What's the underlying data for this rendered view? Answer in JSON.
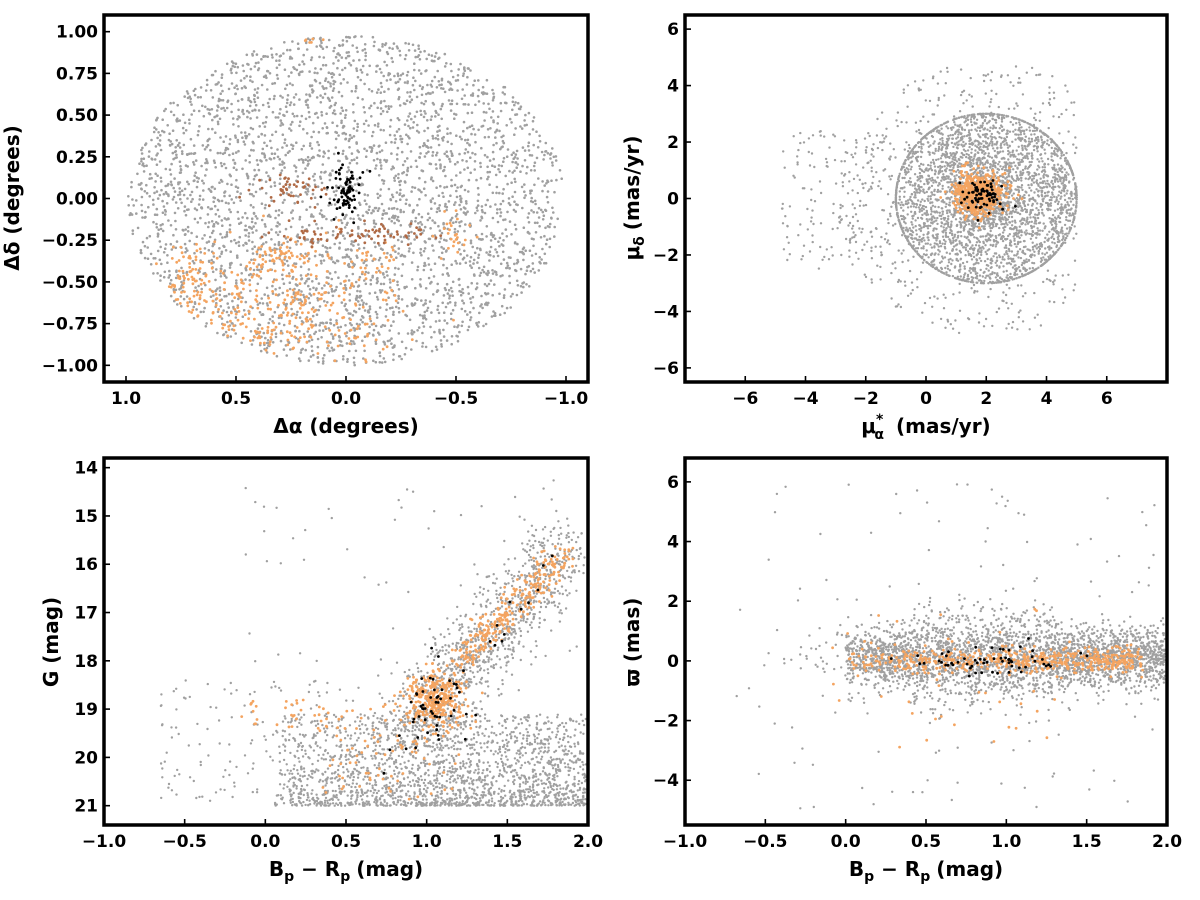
{
  "colors": {
    "field": "#a0a0a0",
    "members": "#f4a460",
    "core": "#000000"
  },
  "chart_data": [
    {
      "id": "sky",
      "type": "scatter",
      "xlabel_main": "Δα",
      "xlabel_unit": "(degrees)",
      "ylabel_main": "Δδ",
      "ylabel_unit": "(degrees)",
      "xlim": [
        1.1,
        -1.1
      ],
      "ylim": [
        -1.1,
        1.1
      ],
      "xticks": [
        1.0,
        0.5,
        0.0,
        -0.5,
        -1.0
      ],
      "xtick_labels": [
        "1.0",
        "0.5",
        "0.0",
        "−0.5",
        "−1.0"
      ],
      "yticks": [
        1.0,
        0.75,
        0.5,
        0.25,
        0.0,
        -0.25,
        -0.5,
        -0.75,
        -1.0
      ],
      "ytick_labels": [
        "1.00",
        "0.75",
        "0.50",
        "0.25",
        "0.00",
        "−0.25",
        "−0.50",
        "−0.75",
        "−1.00"
      ],
      "series": [
        {
          "role": "field",
          "distribution": "uniform disk",
          "center": [
            0.0,
            -0.01
          ],
          "radius": 0.99,
          "n_points": 3300
        },
        {
          "role": "members",
          "description": "southern overdensity and filaments",
          "clumps": [
            {
              "center": [
                0.35,
                -0.68
              ],
              "spread": [
                0.28,
                0.2
              ],
              "n": 380
            },
            {
              "center": [
                0.7,
                -0.48
              ],
              "spread": [
                0.08,
                0.12
              ],
              "n": 70
            },
            {
              "center": [
                0.3,
                -0.35
              ],
              "spread": [
                0.08,
                0.05
              ],
              "n": 55
            },
            {
              "center": [
                -0.1,
                -0.38
              ],
              "spread": [
                0.07,
                0.06
              ],
              "n": 30
            },
            {
              "center": [
                -0.48,
                -0.2
              ],
              "spread": [
                0.05,
                0.08
              ],
              "n": 25
            },
            {
              "center": [
                0.15,
                0.96
              ],
              "spread": [
                0.03,
                0.02
              ],
              "n": 12
            }
          ]
        },
        {
          "role": "members-dark",
          "description": "brown filaments near centre",
          "clumps": [
            {
              "center": [
                0.25,
                0.05
              ],
              "spread": [
                0.09,
                0.05
              ],
              "n": 45
            },
            {
              "center": [
                0.1,
                -0.22
              ],
              "spread": [
                0.12,
                0.03
              ],
              "n": 40
            },
            {
              "center": [
                -0.22,
                -0.2
              ],
              "spread": [
                0.1,
                0.03
              ],
              "n": 35
            }
          ]
        },
        {
          "role": "core",
          "description": "central cluster",
          "clumps": [
            {
              "center": [
                0.0,
                0.02
              ],
              "spread": [
                0.05,
                0.09
              ],
              "n": 75
            }
          ]
        }
      ]
    },
    {
      "id": "proper-motion",
      "type": "scatter",
      "xlabel_main": "μ",
      "xlabel_sub": "α",
      "xlabel_sup": "*",
      "xlabel_unit": "(mas/yr)",
      "ylabel_main": "μ",
      "ylabel_sub": "δ",
      "ylabel_unit": "(mas/yr)",
      "xlim": [
        -8.0,
        8.0
      ],
      "ylim": [
        -6.5,
        6.5
      ],
      "xticks": [
        -6,
        -4,
        -2,
        0,
        2,
        4,
        6
      ],
      "xtick_labels": [
        "−6",
        "−4",
        "−2",
        "0",
        "2",
        "4",
        "6"
      ],
      "yticks": [
        6,
        4,
        2,
        0,
        -2,
        -4,
        -6
      ],
      "ytick_labels": [
        "6",
        "4",
        "2",
        "0",
        "−2",
        "−4",
        "−6"
      ],
      "series": [
        {
          "role": "field",
          "distribution": "disk",
          "center": [
            2.0,
            0.0
          ],
          "radius": 3.0,
          "n_points": 3200
        },
        {
          "role": "field-tail",
          "x_range": [
            -4.8,
            -1.0
          ],
          "y_range": [
            -2.5,
            2.5
          ],
          "n_points": 160
        },
        {
          "role": "members",
          "center": [
            1.75,
            0.2
          ],
          "spread": [
            0.38,
            0.38
          ],
          "n_points": 600
        },
        {
          "role": "core",
          "center": [
            1.9,
            0.15
          ],
          "spread": [
            0.35,
            0.3
          ],
          "n_points": 70
        }
      ]
    },
    {
      "id": "cmd",
      "type": "scatter",
      "xlabel_main": "B",
      "xlabel_sub": "p",
      "xlabel_mid": " − R",
      "xlabel_sub2": "p",
      "xlabel_unit": "(mag)",
      "ylabel_main": "G",
      "ylabel_unit": "(mag)",
      "xlim": [
        -1.0,
        2.0
      ],
      "ylim": [
        21.4,
        13.8
      ],
      "xticks": [
        -1.0,
        -0.5,
        0.0,
        0.5,
        1.0,
        1.5,
        2.0
      ],
      "xtick_labels": [
        "−1.0",
        "−0.5",
        "0.0",
        "0.5",
        "1.0",
        "1.5",
        "2.0"
      ],
      "yticks": [
        21,
        20,
        19,
        18,
        17,
        16,
        15,
        14
      ],
      "ytick_labels": [
        "21",
        "20",
        "19",
        "18",
        "17",
        "16",
        "15",
        "14"
      ],
      "series": [
        {
          "role": "field",
          "description": "faint band G 19–21 plus sequence",
          "n_points": 3000
        },
        {
          "role": "members",
          "description": "red clump near (1.05, 18.8) and giant branch to (1.85, 15.8)",
          "n_points": 650
        },
        {
          "role": "core",
          "n_points": 65
        }
      ]
    },
    {
      "id": "parallax",
      "type": "scatter",
      "xlabel_main": "B",
      "xlabel_sub": "p",
      "xlabel_mid": " − R",
      "xlabel_sub2": "p",
      "xlabel_unit": "(mag)",
      "ylabel_main": "ϖ",
      "ylabel_unit": "(mas)",
      "xlim": [
        -1.0,
        2.0
      ],
      "ylim": [
        -5.5,
        6.8
      ],
      "xticks": [
        -1.0,
        -0.5,
        0.0,
        0.5,
        1.0,
        1.5,
        2.0
      ],
      "xtick_labels": [
        "−1.0",
        "−0.5",
        "0.0",
        "0.5",
        "1.0",
        "1.5",
        "2.0"
      ],
      "yticks": [
        6,
        4,
        2,
        0,
        -2,
        -4
      ],
      "ytick_labels": [
        "6",
        "4",
        "2",
        "0",
        "−2",
        "−4"
      ],
      "series": [
        {
          "role": "field",
          "description": "broad band around ϖ = 0",
          "n_points": 3200
        },
        {
          "role": "members",
          "description": "narrow band around ϖ = 0 from 0.0 to 1.8",
          "n_points": 650
        },
        {
          "role": "core",
          "n_points": 65
        }
      ]
    }
  ]
}
